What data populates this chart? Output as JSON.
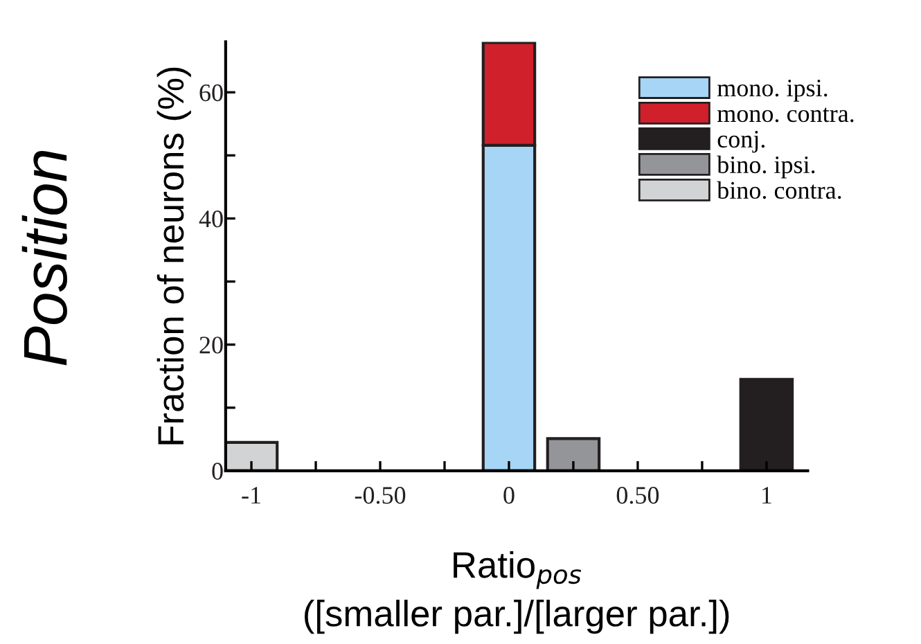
{
  "chart_data": {
    "type": "bar",
    "stacked": true,
    "ylabel": "Fraction of neurons (%)",
    "xlabel": "Ratio$_{pos}$\n([smaller par.]/[larger par.])",
    "annotations": [
      "Position"
    ],
    "x": [
      -1,
      0,
      0.25,
      1
    ],
    "series": [
      {
        "name": "mono. ipsi.",
        "color": "#a6d5f5",
        "values": [
          null,
          51.6,
          null,
          null
        ]
      },
      {
        "name": "mono. contra.",
        "color": "#d0202b",
        "values": [
          null,
          16.3,
          null,
          null
        ]
      },
      {
        "name": "conj.",
        "color": "#231f20",
        "values": [
          null,
          null,
          null,
          14.5
        ]
      },
      {
        "name": "bino. ipsi.",
        "color": "#939598",
        "values": [
          null,
          null,
          5.1,
          null
        ]
      },
      {
        "name": "bino. contra.",
        "color": "#d1d3d4",
        "values": [
          4.5,
          null,
          null,
          null
        ]
      }
    ],
    "xlim": [
      -1.1,
      1.16
    ],
    "xticks": [
      -1,
      {
        "value": -0.75,
        "label": null
      },
      {
        "value": -0.5,
        "label": "-0.50"
      },
      {
        "value": -0.25,
        "label": null
      },
      0,
      {
        "value": 0.25,
        "label": null
      },
      {
        "value": 0.5,
        "label": "0.50"
      },
      {
        "value": 0.75,
        "label": null
      },
      1
    ],
    "ylim": [
      0,
      68
    ],
    "yticks": [
      0,
      {
        "value": 10,
        "label": null
      },
      20,
      {
        "value": 30,
        "label": null
      },
      40,
      {
        "value": 50,
        "label": null
      },
      60
    ],
    "legend": "top right",
    "grid": false
  }
}
